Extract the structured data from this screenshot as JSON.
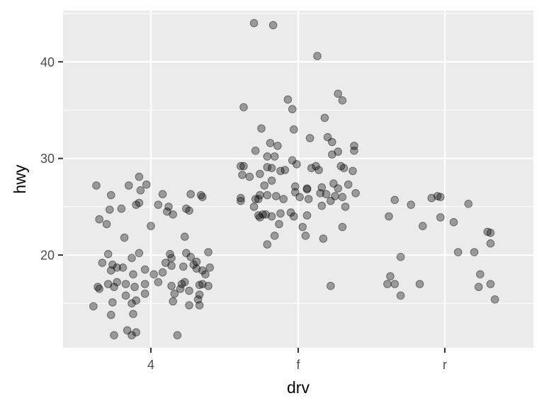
{
  "chart_data": {
    "type": "scatter",
    "title": "",
    "xlabel": "drv",
    "ylabel": "hwy",
    "x_type": "categorical",
    "categories": [
      "4",
      "f",
      "r"
    ],
    "yticks": [
      20,
      30,
      40
    ],
    "ylim": [
      10.4,
      45.3
    ],
    "grid": true,
    "point_color": "#000000",
    "point_alpha": 0.35,
    "series": [
      {
        "values": [
          {
            "x": "4",
            "y": 16.7,
            "j": -0.36
          },
          {
            "x": "4",
            "y": 27.2,
            "j": -0.37
          },
          {
            "x": "4",
            "y": 23.7,
            "j": -0.35
          },
          {
            "x": "4",
            "y": 16.5,
            "j": -0.35
          },
          {
            "x": "4",
            "y": 14.7,
            "j": -0.39
          },
          {
            "x": "4",
            "y": 19.2,
            "j": -0.33
          },
          {
            "x": "4",
            "y": 23.2,
            "j": -0.3
          },
          {
            "x": "4",
            "y": 24.7,
            "j": -0.28
          },
          {
            "x": "4",
            "y": 26.2,
            "j": -0.27
          },
          {
            "x": "4",
            "y": 20.1,
            "j": -0.29
          },
          {
            "x": "4",
            "y": 18.4,
            "j": -0.27
          },
          {
            "x": "4",
            "y": 19.0,
            "j": -0.26
          },
          {
            "x": "4",
            "y": 17.0,
            "j": -0.29
          },
          {
            "x": "4",
            "y": 16.7,
            "j": -0.25
          },
          {
            "x": "4",
            "y": 15.1,
            "j": -0.26
          },
          {
            "x": "4",
            "y": 13.8,
            "j": -0.27
          },
          {
            "x": "4",
            "y": 11.7,
            "j": -0.25
          },
          {
            "x": "4",
            "y": 18.7,
            "j": -0.23
          },
          {
            "x": "4",
            "y": 17.2,
            "j": -0.23
          },
          {
            "x": "4",
            "y": 24.8,
            "j": -0.2
          },
          {
            "x": "4",
            "y": 21.8,
            "j": -0.18
          },
          {
            "x": "4",
            "y": 18.7,
            "j": -0.19
          },
          {
            "x": "4",
            "y": 17.0,
            "j": -0.17
          },
          {
            "x": "4",
            "y": 15.8,
            "j": -0.17
          },
          {
            "x": "4",
            "y": 12.2,
            "j": -0.16
          },
          {
            "x": "4",
            "y": 11.7,
            "j": -0.13
          },
          {
            "x": "4",
            "y": 12.0,
            "j": -0.1
          },
          {
            "x": "4",
            "y": 13.9,
            "j": -0.12
          },
          {
            "x": "4",
            "y": 15.0,
            "j": -0.13
          },
          {
            "x": "4",
            "y": 15.3,
            "j": -0.1
          },
          {
            "x": "4",
            "y": 16.7,
            "j": -0.11
          },
          {
            "x": "4",
            "y": 18.0,
            "j": -0.12
          },
          {
            "x": "4",
            "y": 19.7,
            "j": -0.13
          },
          {
            "x": "4",
            "y": 20.2,
            "j": -0.08
          },
          {
            "x": "4",
            "y": 25.2,
            "j": -0.1
          },
          {
            "x": "4",
            "y": 25.4,
            "j": -0.08
          },
          {
            "x": "4",
            "y": 26.7,
            "j": -0.07
          },
          {
            "x": "4",
            "y": 28.1,
            "j": -0.08
          },
          {
            "x": "4",
            "y": 27.2,
            "j": -0.15
          },
          {
            "x": "4",
            "y": 27.3,
            "j": -0.03
          },
          {
            "x": "4",
            "y": 18.5,
            "j": -0.04
          },
          {
            "x": "4",
            "y": 17.0,
            "j": -0.04
          },
          {
            "x": "4",
            "y": 16.0,
            "j": -0.04
          },
          {
            "x": "4",
            "y": 23.0,
            "j": 0.0
          },
          {
            "x": "4",
            "y": 18.0,
            "j": 0.02
          },
          {
            "x": "4",
            "y": 17.2,
            "j": 0.05
          },
          {
            "x": "4",
            "y": 25.2,
            "j": 0.05
          },
          {
            "x": "4",
            "y": 26.3,
            "j": 0.08
          },
          {
            "x": "4",
            "y": 24.5,
            "j": 0.11
          },
          {
            "x": "4",
            "y": 25.0,
            "j": 0.12
          },
          {
            "x": "4",
            "y": 24.2,
            "j": 0.15
          },
          {
            "x": "4",
            "y": 20.1,
            "j": 0.13
          },
          {
            "x": "4",
            "y": 19.7,
            "j": 0.14
          },
          {
            "x": "4",
            "y": 19.2,
            "j": 0.1
          },
          {
            "x": "4",
            "y": 18.9,
            "j": 0.14
          },
          {
            "x": "4",
            "y": 18.2,
            "j": 0.08
          },
          {
            "x": "4",
            "y": 16.8,
            "j": 0.14
          },
          {
            "x": "4",
            "y": 15.2,
            "j": 0.15
          },
          {
            "x": "4",
            "y": 16.0,
            "j": 0.16
          },
          {
            "x": "4",
            "y": 11.7,
            "j": 0.18
          },
          {
            "x": "4",
            "y": 16.5,
            "j": 0.2
          },
          {
            "x": "4",
            "y": 17.0,
            "j": 0.21
          },
          {
            "x": "4",
            "y": 17.2,
            "j": 0.23
          },
          {
            "x": "4",
            "y": 18.8,
            "j": 0.22
          },
          {
            "x": "4",
            "y": 20.2,
            "j": 0.24
          },
          {
            "x": "4",
            "y": 21.9,
            "j": 0.23
          },
          {
            "x": "4",
            "y": 24.8,
            "j": 0.24
          },
          {
            "x": "4",
            "y": 24.6,
            "j": 0.26
          },
          {
            "x": "4",
            "y": 26.3,
            "j": 0.27
          },
          {
            "x": "4",
            "y": 19.8,
            "j": 0.27
          },
          {
            "x": "4",
            "y": 19.0,
            "j": 0.29
          },
          {
            "x": "4",
            "y": 18.6,
            "j": 0.31
          },
          {
            "x": "4",
            "y": 16.9,
            "j": 0.33
          },
          {
            "x": "4",
            "y": 16.3,
            "j": 0.26
          },
          {
            "x": "4",
            "y": 14.8,
            "j": 0.26
          },
          {
            "x": "4",
            "y": 15.4,
            "j": 0.32
          },
          {
            "x": "4",
            "y": 14.8,
            "j": 0.33
          },
          {
            "x": "4",
            "y": 15.9,
            "j": 0.33
          },
          {
            "x": "4",
            "y": 17.0,
            "j": 0.35
          },
          {
            "x": "4",
            "y": 18.4,
            "j": 0.35
          },
          {
            "x": "4",
            "y": 18.0,
            "j": 0.37
          },
          {
            "x": "4",
            "y": 16.8,
            "j": 0.39
          },
          {
            "x": "4",
            "y": 18.7,
            "j": 0.4
          },
          {
            "x": "4",
            "y": 20.3,
            "j": 0.39
          },
          {
            "x": "4",
            "y": 26.2,
            "j": 0.34
          },
          {
            "x": "4",
            "y": 26.0,
            "j": 0.35
          },
          {
            "x": "4",
            "y": 19.3,
            "j": 0.31
          },
          {
            "x": "f",
            "y": 44.0,
            "j": -0.3
          },
          {
            "x": "f",
            "y": 43.8,
            "j": -0.17
          },
          {
            "x": "f",
            "y": 40.6,
            "j": 0.13
          },
          {
            "x": "f",
            "y": 36.1,
            "j": -0.07
          },
          {
            "x": "f",
            "y": 35.3,
            "j": -0.37
          },
          {
            "x": "f",
            "y": 35.1,
            "j": -0.04
          },
          {
            "x": "f",
            "y": 36.7,
            "j": 0.27
          },
          {
            "x": "f",
            "y": 36.0,
            "j": 0.3
          },
          {
            "x": "f",
            "y": 34.2,
            "j": 0.18
          },
          {
            "x": "f",
            "y": 33.1,
            "j": -0.25
          },
          {
            "x": "f",
            "y": 33.0,
            "j": -0.03
          },
          {
            "x": "f",
            "y": 32.1,
            "j": 0.08
          },
          {
            "x": "f",
            "y": 32.2,
            "j": 0.2
          },
          {
            "x": "f",
            "y": 31.6,
            "j": -0.19
          },
          {
            "x": "f",
            "y": 31.3,
            "j": -0.14
          },
          {
            "x": "f",
            "y": 31.7,
            "j": 0.23
          },
          {
            "x": "f",
            "y": 31.3,
            "j": 0.38
          },
          {
            "x": "f",
            "y": 30.8,
            "j": -0.29
          },
          {
            "x": "f",
            "y": 30.8,
            "j": 0.38
          },
          {
            "x": "f",
            "y": 30.4,
            "j": 0.23
          },
          {
            "x": "f",
            "y": 30.7,
            "j": 0.27
          },
          {
            "x": "f",
            "y": 30.2,
            "j": -0.21
          },
          {
            "x": "f",
            "y": 30.2,
            "j": -0.16
          },
          {
            "x": "f",
            "y": 29.8,
            "j": -0.04
          },
          {
            "x": "f",
            "y": 29.4,
            "j": -0.01
          },
          {
            "x": "f",
            "y": 29.2,
            "j": -0.39
          },
          {
            "x": "f",
            "y": 29.2,
            "j": -0.37
          },
          {
            "x": "f",
            "y": 29.1,
            "j": -0.21
          },
          {
            "x": "f",
            "y": 29.0,
            "j": -0.18
          },
          {
            "x": "f",
            "y": 28.7,
            "j": -0.12
          },
          {
            "x": "f",
            "y": 28.8,
            "j": -0.09
          },
          {
            "x": "f",
            "y": 29.0,
            "j": 0.09
          },
          {
            "x": "f",
            "y": 29.2,
            "j": 0.12
          },
          {
            "x": "f",
            "y": 28.8,
            "j": 0.14
          },
          {
            "x": "f",
            "y": 29.2,
            "j": 0.29
          },
          {
            "x": "f",
            "y": 29.0,
            "j": 0.31
          },
          {
            "x": "f",
            "y": 28.7,
            "j": 0.37
          },
          {
            "x": "f",
            "y": 28.4,
            "j": -0.26
          },
          {
            "x": "f",
            "y": 28.1,
            "j": -0.33
          },
          {
            "x": "f",
            "y": 28.3,
            "j": -0.38
          },
          {
            "x": "f",
            "y": 27.7,
            "j": -0.18
          },
          {
            "x": "f",
            "y": 27.2,
            "j": -0.23
          },
          {
            "x": "f",
            "y": 27.1,
            "j": -0.02
          },
          {
            "x": "f",
            "y": 26.8,
            "j": 0.06
          },
          {
            "x": "f",
            "y": 27.0,
            "j": 0.16
          },
          {
            "x": "f",
            "y": 26.9,
            "j": 0.27
          },
          {
            "x": "f",
            "y": 27.3,
            "j": 0.34
          },
          {
            "x": "f",
            "y": 26.5,
            "j": -0.02
          },
          {
            "x": "f",
            "y": 26.2,
            "j": -0.26
          },
          {
            "x": "f",
            "y": 26.2,
            "j": -0.21
          },
          {
            "x": "f",
            "y": 26.1,
            "j": -0.15
          },
          {
            "x": "f",
            "y": 26.0,
            "j": 0.01
          },
          {
            "x": "f",
            "y": 25.8,
            "j": 0.07
          },
          {
            "x": "f",
            "y": 26.4,
            "j": 0.15
          },
          {
            "x": "f",
            "y": 26.3,
            "j": 0.19
          },
          {
            "x": "f",
            "y": 26.1,
            "j": 0.25
          },
          {
            "x": "f",
            "y": 26.0,
            "j": 0.3
          },
          {
            "x": "f",
            "y": 26.4,
            "j": 0.39
          },
          {
            "x": "f",
            "y": 25.9,
            "j": -0.39
          },
          {
            "x": "f",
            "y": 25.6,
            "j": -0.39
          },
          {
            "x": "f",
            "y": 25.8,
            "j": -0.29
          },
          {
            "x": "f",
            "y": 25.8,
            "j": -0.27
          },
          {
            "x": "f",
            "y": 25.8,
            "j": -0.1
          },
          {
            "x": "f",
            "y": 25.6,
            "j": 0.22
          },
          {
            "x": "f",
            "y": 25.1,
            "j": 0.16
          },
          {
            "x": "f",
            "y": 25.0,
            "j": -0.3
          },
          {
            "x": "f",
            "y": 25.0,
            "j": 0.32
          },
          {
            "x": "f",
            "y": 24.3,
            "j": -0.12
          },
          {
            "x": "f",
            "y": 24.2,
            "j": -0.22
          },
          {
            "x": "f",
            "y": 24.2,
            "j": -0.24
          },
          {
            "x": "f",
            "y": 24.1,
            "j": -0.27
          },
          {
            "x": "f",
            "y": 24.0,
            "j": -0.18
          },
          {
            "x": "f",
            "y": 23.9,
            "j": -0.26
          },
          {
            "x": "f",
            "y": 24.4,
            "j": -0.05
          },
          {
            "x": "f",
            "y": 24.0,
            "j": -0.03
          },
          {
            "x": "f",
            "y": 24.1,
            "j": 0.06
          },
          {
            "x": "f",
            "y": 23.2,
            "j": -0.13
          },
          {
            "x": "f",
            "y": 22.9,
            "j": 0.03
          },
          {
            "x": "f",
            "y": 22.9,
            "j": 0.3
          },
          {
            "x": "f",
            "y": 22.0,
            "j": -0.16
          },
          {
            "x": "f",
            "y": 22.0,
            "j": 0.05
          },
          {
            "x": "f",
            "y": 21.7,
            "j": 0.17
          },
          {
            "x": "f",
            "y": 21.1,
            "j": -0.21
          },
          {
            "x": "f",
            "y": 16.8,
            "j": 0.22
          },
          {
            "x": "f",
            "y": 26.9,
            "j": 0.06
          },
          {
            "x": "f",
            "y": 27.4,
            "j": 0.24
          },
          {
            "x": "r",
            "y": 25.7,
            "j": -0.34
          },
          {
            "x": "r",
            "y": 24.0,
            "j": -0.38
          },
          {
            "x": "r",
            "y": 25.2,
            "j": -0.23
          },
          {
            "x": "r",
            "y": 25.9,
            "j": -0.09
          },
          {
            "x": "r",
            "y": 26.1,
            "j": -0.05
          },
          {
            "x": "r",
            "y": 26.0,
            "j": -0.03
          },
          {
            "x": "r",
            "y": 23.9,
            "j": -0.03
          },
          {
            "x": "r",
            "y": 23.0,
            "j": -0.15
          },
          {
            "x": "r",
            "y": 23.4,
            "j": 0.06
          },
          {
            "x": "r",
            "y": 25.3,
            "j": 0.16
          },
          {
            "x": "r",
            "y": 22.4,
            "j": 0.29
          },
          {
            "x": "r",
            "y": 22.3,
            "j": 0.31
          },
          {
            "x": "r",
            "y": 21.2,
            "j": 0.31
          },
          {
            "x": "r",
            "y": 20.3,
            "j": 0.09
          },
          {
            "x": "r",
            "y": 20.3,
            "j": 0.2
          },
          {
            "x": "r",
            "y": 19.8,
            "j": -0.3
          },
          {
            "x": "r",
            "y": 18.0,
            "j": 0.24
          },
          {
            "x": "r",
            "y": 17.8,
            "j": -0.37
          },
          {
            "x": "r",
            "y": 17.0,
            "j": -0.39
          },
          {
            "x": "r",
            "y": 17.0,
            "j": -0.34
          },
          {
            "x": "r",
            "y": 17.0,
            "j": -0.17
          },
          {
            "x": "r",
            "y": 17.0,
            "j": 0.31
          },
          {
            "x": "r",
            "y": 16.7,
            "j": 0.23
          },
          {
            "x": "r",
            "y": 15.8,
            "j": -0.3
          },
          {
            "x": "r",
            "y": 15.4,
            "j": 0.34
          }
        ]
      }
    ]
  }
}
